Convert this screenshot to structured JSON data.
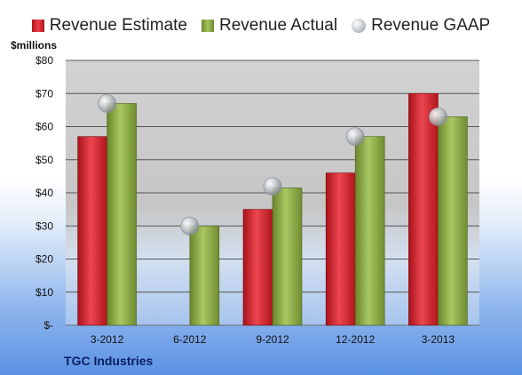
{
  "chart_data": {
    "type": "bar",
    "categories": [
      "3-2012",
      "6-2012",
      "9-2012",
      "12-2012",
      "3-2013"
    ],
    "series": [
      {
        "name": "Revenue Estimate",
        "values": [
          57,
          null,
          35,
          46,
          70
        ],
        "color": "#c8202a"
      },
      {
        "name": "Revenue Actual",
        "values": [
          67,
          30,
          41.5,
          57,
          63
        ],
        "color": "#8aaa45"
      },
      {
        "name": "Revenue GAAP",
        "values": [
          67,
          30,
          42,
          57,
          63
        ],
        "color": "#c0c4c8",
        "marker": "circle"
      }
    ],
    "y_unit": "$millions",
    "ylim": [
      0,
      80
    ],
    "yticks": [
      0,
      10,
      20,
      30,
      40,
      50,
      60,
      70,
      80
    ],
    "ytick_labels": [
      "$-",
      "$10",
      "$20",
      "$30",
      "$40",
      "$50",
      "$60",
      "$70",
      "$80"
    ],
    "legend_position": "top",
    "grid": true,
    "company": "TGC Industries"
  }
}
